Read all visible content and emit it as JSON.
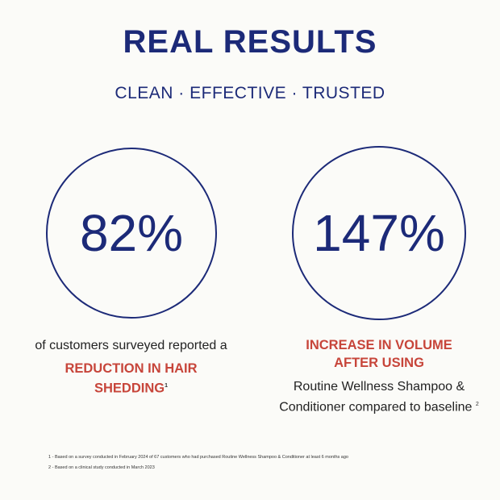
{
  "title": "REAL RESULTS",
  "subtitle": "CLEAN · EFFECTIVE · TRUSTED",
  "stats": [
    {
      "value": "82%",
      "lead": "of customers surveyed reported a",
      "highlight_1": "REDUCTION IN HAIR",
      "highlight_2": "SHEDDING",
      "footnote_ref": "1"
    },
    {
      "value": "147%",
      "highlight_1": "INCREASE IN VOLUME",
      "highlight_2": "AFTER USING",
      "detail_1": "Routine Wellness Shampoo &",
      "detail_2": "Conditioner compared to baseline",
      "footnote_ref": "2"
    }
  ],
  "footnotes": [
    "1 -  Based on a survey conducted in February 2024 of 67 customers who had purchased Routine Wellness Shampoo & Conditioner at least 6 months ago",
    "2 - Based on a clinical study conducted in March 2023"
  ],
  "colors": {
    "navy": "#1c2a78",
    "red": "#c7453a",
    "background": "#fbfbf8"
  }
}
